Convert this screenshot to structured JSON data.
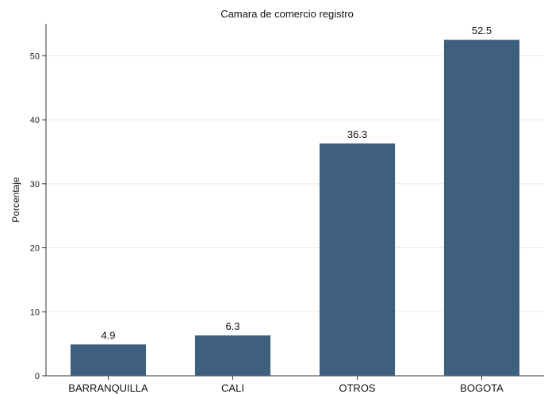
{
  "chart_data": {
    "type": "bar",
    "title": "Camara de comercio registro",
    "xlabel": "",
    "ylabel": "Porcentaje",
    "categories": [
      "BARRANQUILLA",
      "CALI",
      "OTROS",
      "BOGOTA"
    ],
    "values": [
      4.9,
      6.3,
      36.3,
      52.5
    ],
    "data_labels": [
      "4.9",
      "6.3",
      "36.3",
      "52.5"
    ],
    "yticks": [
      0,
      10,
      20,
      30,
      40,
      50
    ],
    "ytick_labels": [
      "0",
      "10",
      "20",
      "30",
      "40",
      "50"
    ],
    "ylim": [
      0,
      55
    ],
    "grid": true,
    "legend": "none",
    "bar_color": "#3e5f7d",
    "grid_color": "#e8e8e8"
  }
}
